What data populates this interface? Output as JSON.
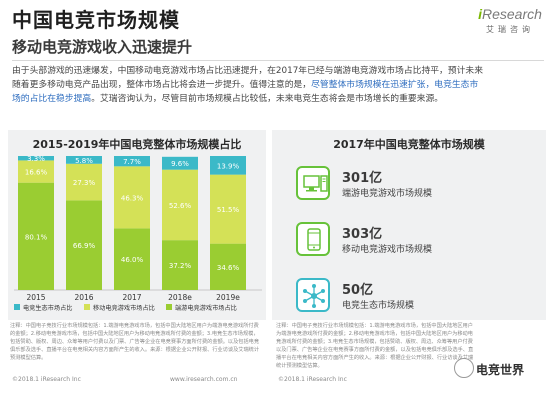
{
  "header": {
    "title": "中国电竞市场规模",
    "subtitle": "移动电竞游戏收入迅速提升",
    "logo_prefix": "i",
    "logo_text": "Research",
    "logo_sub": "艾瑞咨询"
  },
  "intro": {
    "line1": "由于头部游戏的迅速爆发，中国移动电竞游戏市场占比迅速提升，在2017年已经与端游电竞游戏市场占比持平，预计未来",
    "line2a": "随着更多移动电竞产品出现，整体市场占比将会进一步提升。值得注意的是，",
    "line2b": "尽管整体市场规模在迅速扩张，电竞生态市",
    "line3a": "场的占比在稳步提高",
    "line3b": "。艾瑞咨询认为，尽管目前市场规模占比较低，未来电竞生态将会是市场增长的重要来源。"
  },
  "chart_data": {
    "type": "bar",
    "stacked": true,
    "title": "2015-2019年中国电竞整体市场规模占比",
    "categories": [
      "2015",
      "2016",
      "2017",
      "2018e",
      "2019e"
    ],
    "ylim": [
      0,
      100
    ],
    "unit": "%",
    "series": [
      {
        "name": "端游电竞游戏市场占比",
        "color": "#9acd32",
        "values": [
          80.1,
          66.9,
          46.0,
          37.2,
          34.6
        ]
      },
      {
        "name": "移动电竞游戏市场占比",
        "color": "#d4e157",
        "values": [
          16.6,
          27.3,
          46.3,
          52.6,
          51.5
        ]
      },
      {
        "name": "电竞生态市场占比",
        "color": "#3bb9c8",
        "values": [
          3.3,
          5.8,
          7.7,
          9.6,
          13.9
        ]
      }
    ],
    "labels": {
      "seg0": [
        "80.1%",
        "66.9%",
        "46.0%",
        "37.2%",
        "34.6%"
      ],
      "seg1": [
        "16.6%",
        "27.3%",
        "46.3%",
        "52.6%",
        "51.5%"
      ],
      "seg2": [
        "3.3%",
        "5.8%",
        "7.7%",
        "9.6%",
        "13.9%"
      ]
    },
    "legend": [
      "电竞生态市场占比",
      "移动电竞游戏市场占比",
      "端游电竞游戏市场占比"
    ],
    "legend_colors": [
      "#3bb9c8",
      "#d4e157",
      "#9acd32"
    ],
    "legend_position": "bottom"
  },
  "right": {
    "title": "2017年中国电竞整体市场规模",
    "stats": [
      {
        "value": "301亿",
        "label": "端游电竞游戏市场规模"
      },
      {
        "value": "303亿",
        "label": "移动电竞游戏市场规模"
      },
      {
        "value": "50亿",
        "label": "电竞生态市场规模"
      }
    ]
  },
  "notes": {
    "left": "注释：中国电子竞技行业市场规模包括：1.端游电竞游戏市场，包括中国大陆地区用户为端游电竞游戏所付费的金额；2.移动电竞游戏市场，包括中国大陆地区用户为移动电竞游戏所付费的金额；3.电竞生态市场规模，包括赞助、版权、周边、众筹等用户付费以及门票、广告等企业在电竞赛事方面所付费的金额。以及包括电竞俱乐部及选手、直播平台在电竞相关内容方面所产生的收入。来源：根据企业公开财报、行业访谈及艾瑞统计预测模型估算。",
    "right": "注释：中国电子竞技行业市场规模包括：1.端游电竞游戏市场，包括中国大陆地区用户为端游电竞游戏所付费的金额；2.移动电竞游戏市场，包括中国大陆地区用户为移动电竞游戏所付费的金额；3.电竞生态市场规模，包括赞助、版权、周边、众筹等用户付费以及门票、广告等企业在电竞赛事方面所付费的金额，以及包括电竞俱乐部及选手、直播平台在电竞相关内容方面所产生的收入。来源：根据企业公开财报、行业访谈及艾瑞统计预测模型估算。"
  },
  "footer": {
    "left": "©2018.1 iResearch Inc",
    "mid": "www.iresearch.com.cn",
    "right": "©2018.1 iResearch Inc"
  },
  "watermark": "电竞世界"
}
